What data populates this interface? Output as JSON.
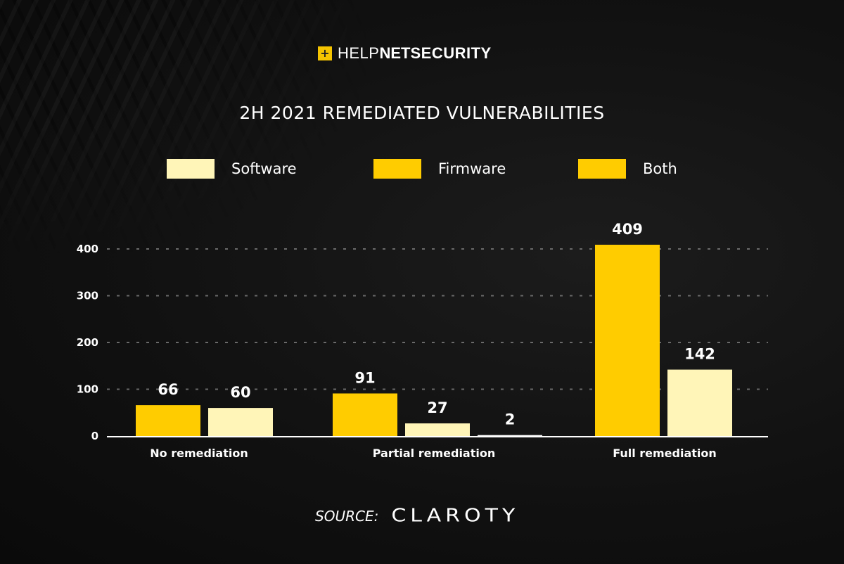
{
  "header": {
    "logo_mark": "+",
    "logo_help": "HELP",
    "logo_net": "NET",
    "logo_security": "SECURITY"
  },
  "footer": {
    "source_label": "SOURCE:",
    "source_brand": "CLAROTY"
  },
  "colors": {
    "software": "#fff5b8",
    "firmware": "#ffcc00",
    "both_legend": "#ffcc00",
    "both_bar": "#ffffff",
    "grid": "#6a6a6a",
    "axis": "#ffffff"
  },
  "chart_data": {
    "type": "bar",
    "title": "2H 2021 REMEDIATED VULNERABILITIES",
    "xlabel": "",
    "ylabel": "",
    "ylim": [
      0,
      400
    ],
    "yticks": [
      0,
      100,
      200,
      300,
      400
    ],
    "grid": true,
    "legend_position": "top",
    "legend": [
      "Software",
      "Firmware",
      "Both"
    ],
    "categories": [
      "No remediation",
      "Partial remediation",
      "Full remediation"
    ],
    "bars": [
      [
        {
          "series": "Firmware",
          "value": 66
        },
        {
          "series": "Software",
          "value": 60
        }
      ],
      [
        {
          "series": "Firmware",
          "value": 91
        },
        {
          "series": "Software",
          "value": 27
        },
        {
          "series": "Both",
          "value": 2
        }
      ],
      [
        {
          "series": "Firmware",
          "value": 409
        },
        {
          "series": "Software",
          "value": 142
        }
      ]
    ]
  }
}
